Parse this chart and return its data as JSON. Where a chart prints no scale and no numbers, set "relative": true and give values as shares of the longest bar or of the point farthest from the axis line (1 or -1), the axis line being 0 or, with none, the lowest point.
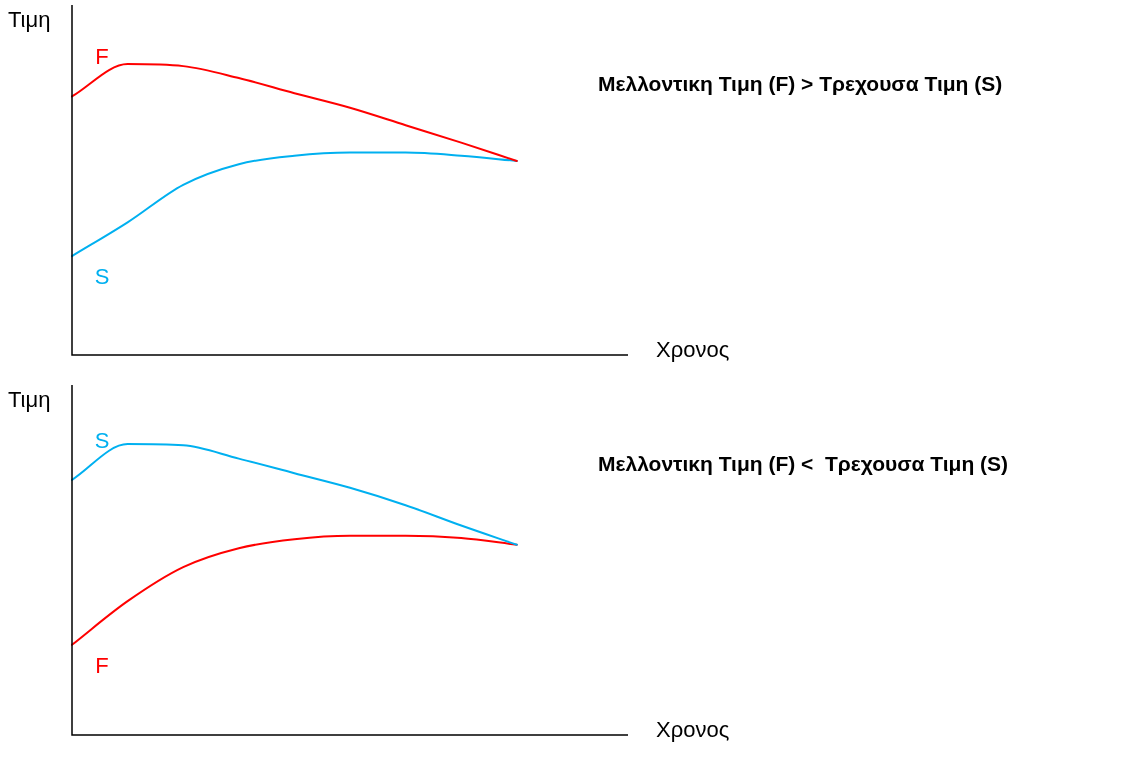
{
  "chart_data": [
    {
      "type": "line",
      "relative": true,
      "ylabel": "Τιμη",
      "xlabel": "Χρονος",
      "legend": false,
      "marker": "none",
      "categories": [
        null,
        null,
        null,
        null,
        null,
        null,
        null,
        null,
        null,
        null,
        null
      ],
      "annotations": [
        "Μελλοντικη Τιμη (F) > Τρεχουσα Τιμη (S)"
      ],
      "series": [
        {
          "name": "F",
          "color": "#ff0000",
          "values": [
            0.889,
            1.0,
            0.993,
            0.952,
            0.9,
            0.85,
            0.79,
            0.73,
            0.667,
            null,
            null
          ]
        },
        {
          "name": "S",
          "color": "#00b0f0",
          "values": [
            0.34,
            0.456,
            0.585,
            0.656,
            0.685,
            0.696,
            0.696,
            0.685,
            0.667,
            null,
            null
          ]
        }
      ]
    },
    {
      "type": "line",
      "relative": true,
      "ylabel": "Τιμη",
      "xlabel": "Χρονος",
      "legend": false,
      "marker": "none",
      "categories": [
        null,
        null,
        null,
        null,
        null,
        null,
        null,
        null,
        null,
        null,
        null
      ],
      "annotations": [
        "Μελλοντικη Τιμη (F) <  Τρεχουσα Τιμη (S)"
      ],
      "series": [
        {
          "name": "S",
          "color": "#00b0f0",
          "values": [
            0.877,
            1.0,
            0.996,
            0.95,
            0.9,
            0.85,
            0.79,
            0.72,
            0.654,
            null,
            null
          ]
        },
        {
          "name": "F",
          "color": "#ff0000",
          "values": [
            0.31,
            0.46,
            0.577,
            0.642,
            0.673,
            0.685,
            0.685,
            0.677,
            0.654,
            null,
            null
          ]
        }
      ]
    }
  ]
}
